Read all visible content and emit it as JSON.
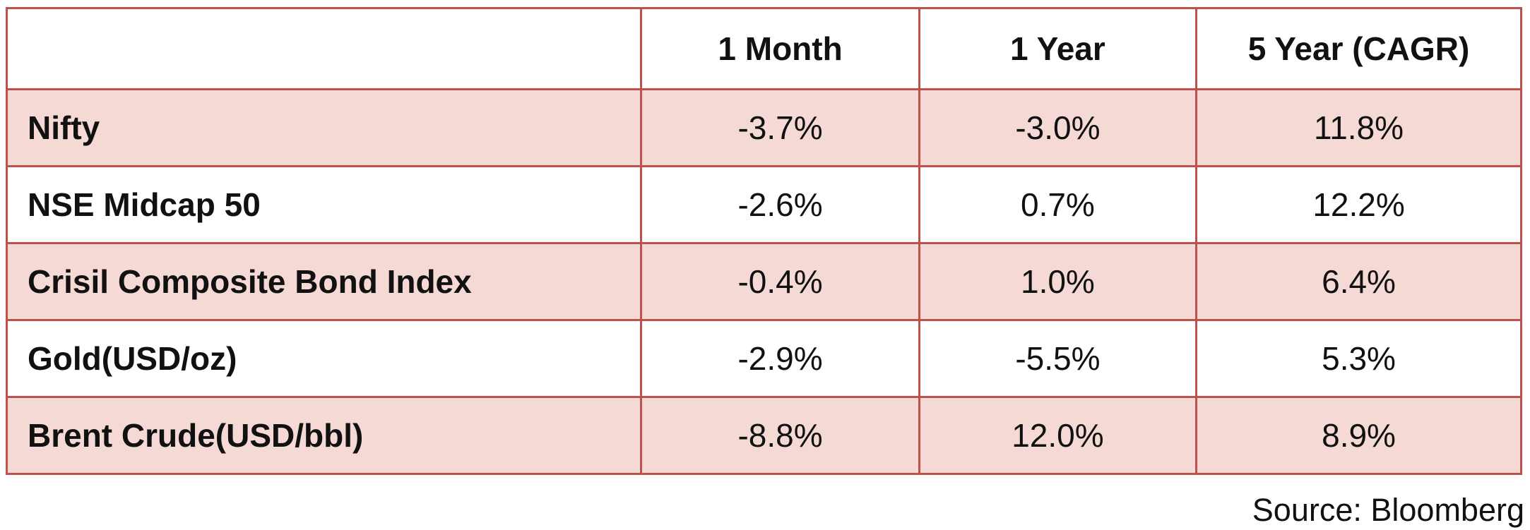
{
  "table": {
    "header": {
      "label_col": "",
      "col_1month": "1 Month",
      "col_1year": "1 Year",
      "col_5year": "5 Year (CAGR)"
    },
    "rows": [
      {
        "label": "Nifty",
        "values": [
          "-3.7%",
          "-3.0%",
          "11.8%"
        ]
      },
      {
        "label": "NSE Midcap 50",
        "values": [
          "-2.6%",
          "0.7%",
          "12.2%"
        ]
      },
      {
        "label": "Crisil Composite Bond Index",
        "values": [
          "-0.4%",
          "1.0%",
          "6.4%"
        ]
      },
      {
        "label": "Gold(USD/oz)",
        "values": [
          "-2.9%",
          "-5.5%",
          "5.3%"
        ]
      },
      {
        "label": "Brent Crude(USD/bbl)",
        "values": [
          "-8.8%",
          "12.0%",
          "8.9%"
        ]
      }
    ]
  },
  "footer": {
    "source": "Source: Bloomberg"
  },
  "colors": {
    "row_alt_fill": "#f5d9d4",
    "table_border": "#bf514d",
    "text": "#111111",
    "background": "#ffffff"
  },
  "chart_data": {
    "type": "table",
    "title": "",
    "categories": [
      "Nifty",
      "NSE Midcap 50",
      "Crisil Composite Bond Index",
      "Gold(USD/oz)",
      "Brent Crude(USD/bbl)"
    ],
    "series": [
      {
        "name": "1 Month",
        "values": [
          -3.7,
          -2.6,
          -0.4,
          -2.9,
          -8.8
        ]
      },
      {
        "name": "1 Year",
        "values": [
          -3.0,
          0.7,
          1.0,
          -5.5,
          12.0
        ]
      },
      {
        "name": "5 Year (CAGR)",
        "values": [
          11.8,
          12.2,
          6.4,
          5.3,
          8.9
        ]
      }
    ],
    "units": "percent",
    "annotations": [
      "Source: Bloomberg"
    ],
    "layout": {
      "striped_rows": true,
      "stripe_color": "#f5d9d4",
      "border_color": "#bf514d",
      "grid": true,
      "legend_position": "none"
    }
  }
}
